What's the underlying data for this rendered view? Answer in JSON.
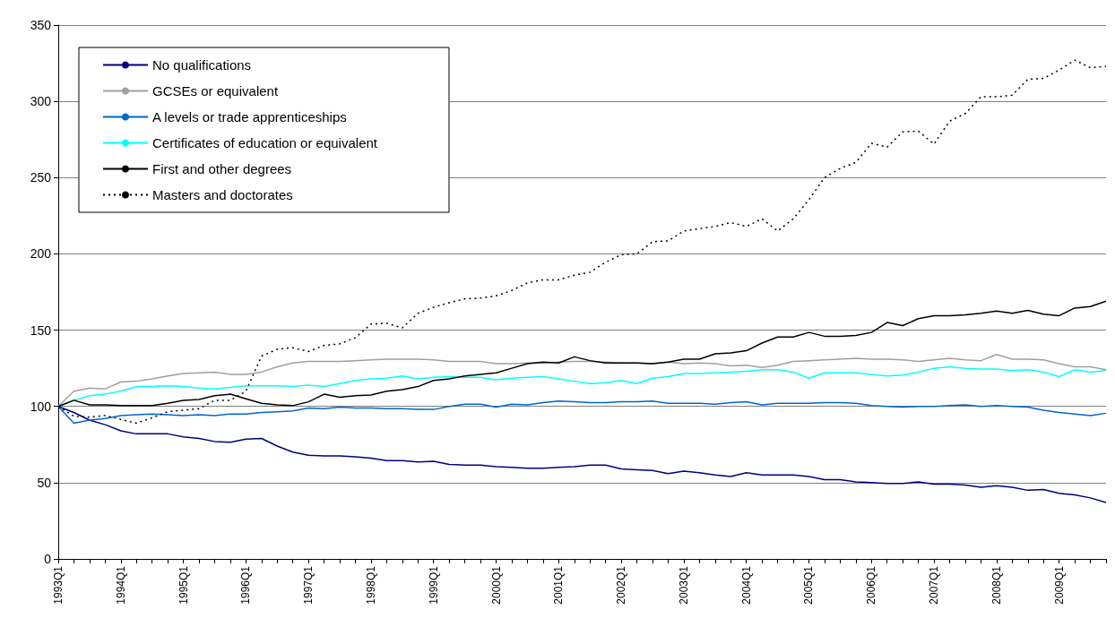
{
  "chart_data": {
    "type": "line",
    "categories": [
      "1993Q1",
      null,
      null,
      null,
      "1994Q1",
      null,
      null,
      null,
      "1995Q1",
      null,
      null,
      null,
      "1996Q1",
      null,
      null,
      null,
      "1997Q1",
      null,
      null,
      null,
      "1998Q1",
      null,
      null,
      null,
      "1999Q1",
      null,
      null,
      null,
      "2000Q1",
      null,
      null,
      null,
      "2001Q1",
      null,
      null,
      null,
      "2002Q1",
      null,
      null,
      null,
      "2003Q1",
      null,
      null,
      null,
      "2004Q1",
      null,
      null,
      null,
      "2005Q1",
      null,
      null,
      null,
      "2006Q1",
      null,
      null,
      null,
      "2007Q1",
      null,
      null,
      null,
      "2008Q1",
      null,
      null,
      null,
      "2009Q1",
      null,
      null,
      null
    ],
    "series": [
      {
        "name": "No qualifications",
        "color": "#000080",
        "values": [
          100,
          96,
          91,
          88,
          84,
          82,
          82,
          82,
          80,
          79,
          77,
          76.5,
          78.5,
          79,
          74,
          70,
          68,
          67.5,
          67.5,
          67,
          66,
          64.5,
          64.5,
          63.5,
          64,
          62,
          61.5,
          61.5,
          60.5,
          60,
          59.5,
          59.5,
          60,
          60.5,
          61.5,
          61.5,
          59,
          58.5,
          58,
          56,
          57.5,
          56.5,
          55,
          54,
          56.5,
          55,
          55,
          55,
          54,
          52,
          52,
          50.5,
          50,
          49.5,
          49.5,
          50.5,
          49,
          49,
          48.5,
          47,
          48,
          47,
          45,
          45.5,
          43,
          42,
          40,
          37
        ]
      },
      {
        "name": "GCSEs or equivalent",
        "color": "#a0a0a0",
        "values": [
          100,
          110,
          112,
          111.5,
          116,
          116.5,
          118,
          120,
          121.5,
          122,
          122.5,
          121,
          121,
          122.5,
          126,
          128.5,
          129.5,
          129.5,
          129.5,
          130,
          130.5,
          131,
          131,
          131,
          130.5,
          129.5,
          129.5,
          129.5,
          128,
          128,
          128.5,
          128.5,
          129,
          129.5,
          129.5,
          129,
          128.5,
          128.5,
          128,
          129,
          128,
          128.5,
          128,
          126.5,
          127,
          125.5,
          127,
          129.5,
          130,
          130.5,
          131,
          131.5,
          131,
          131,
          130.5,
          129.5,
          130.5,
          131.5,
          130.5,
          130,
          134,
          131,
          131,
          130.5,
          128,
          126,
          126,
          124
        ]
      },
      {
        "name": "A levels or trade apprenticeships",
        "color": "#0066cc",
        "values": [
          100,
          89,
          91,
          92,
          94,
          94.5,
          95,
          94.5,
          94,
          94.5,
          94,
          95,
          95,
          96,
          96.5,
          97,
          99,
          98.5,
          99.5,
          99,
          99,
          98.5,
          98.5,
          98,
          98,
          100,
          101.5,
          101.5,
          99.5,
          101.5,
          101,
          102.5,
          103.5,
          103,
          102.5,
          102.5,
          103,
          103,
          103.5,
          102,
          102,
          102,
          101.5,
          102.5,
          103,
          101,
          102,
          102,
          102,
          102.5,
          102.5,
          102,
          100.5,
          100,
          99.5,
          100,
          100,
          100.5,
          101,
          100,
          100.5,
          100,
          99.5,
          97.5,
          96,
          95,
          94,
          95.5
        ]
      },
      {
        "name": "Certificates of education or equivalent",
        "color": "#00ffff",
        "values": [
          100,
          104,
          107,
          108,
          110,
          113,
          113,
          113.5,
          113,
          112,
          111.5,
          112.5,
          113.5,
          113.5,
          113.5,
          113,
          114,
          113,
          115,
          117,
          118,
          118.5,
          120,
          118,
          119,
          119.5,
          119,
          119,
          117.5,
          118.5,
          119,
          119.5,
          118,
          116.5,
          115,
          115.5,
          117,
          115,
          118.5,
          119.5,
          121.5,
          121.5,
          122,
          122.5,
          123,
          124,
          124,
          122.5,
          118.5,
          122,
          122,
          122,
          121,
          120,
          120.5,
          122.5,
          125,
          126,
          125,
          124.5,
          124.5,
          123.5,
          124,
          122.5,
          119.5,
          124,
          122.5,
          123.5
        ]
      },
      {
        "name": "First and other degrees",
        "color": "#000000",
        "values": [
          100,
          104,
          101,
          101,
          100.5,
          100.5,
          100.5,
          102,
          104,
          104.5,
          107,
          108,
          105,
          102,
          101,
          100.5,
          103,
          108,
          106,
          107,
          107.5,
          110,
          111,
          113,
          117,
          118,
          120,
          121,
          122,
          125,
          128,
          129,
          128.5,
          132.5,
          130,
          128.5,
          128.5,
          128.5,
          128,
          129,
          131,
          131,
          134.5,
          135,
          136.5,
          141.5,
          145.5,
          145.5,
          148.5,
          146,
          146,
          146.5,
          148.5,
          155,
          153,
          157.5,
          159.5,
          159.5,
          160,
          161,
          162.5,
          161,
          163,
          160.5,
          159.5,
          164.5,
          165.5,
          169
        ]
      },
      {
        "name": "Masters and doctorates",
        "color": "#000000",
        "line_style": "dotted",
        "values": [
          100,
          93.5,
          93,
          94,
          91.5,
          89,
          92.5,
          96.5,
          97.5,
          98.5,
          104,
          104,
          110,
          133,
          137.5,
          138.5,
          136,
          140,
          141,
          145,
          154,
          154.5,
          151.5,
          161,
          165,
          168,
          170.5,
          171,
          172.5,
          176,
          181,
          183,
          183,
          186,
          188,
          194.5,
          199.5,
          200,
          208,
          208.5,
          215,
          216.5,
          218,
          220.5,
          218,
          223,
          215,
          223,
          235.5,
          250,
          256,
          260,
          272.5,
          270,
          280,
          280.5,
          272,
          287,
          292,
          303,
          303,
          304,
          314.5,
          315,
          320.5,
          327,
          322,
          323
        ]
      }
    ],
    "ylim": [
      0,
      350
    ],
    "yticks": [
      0,
      50,
      100,
      150,
      200,
      250,
      300,
      350
    ],
    "grid": "y",
    "legend": "top left",
    "marker": "none",
    "line_style": "solid"
  }
}
